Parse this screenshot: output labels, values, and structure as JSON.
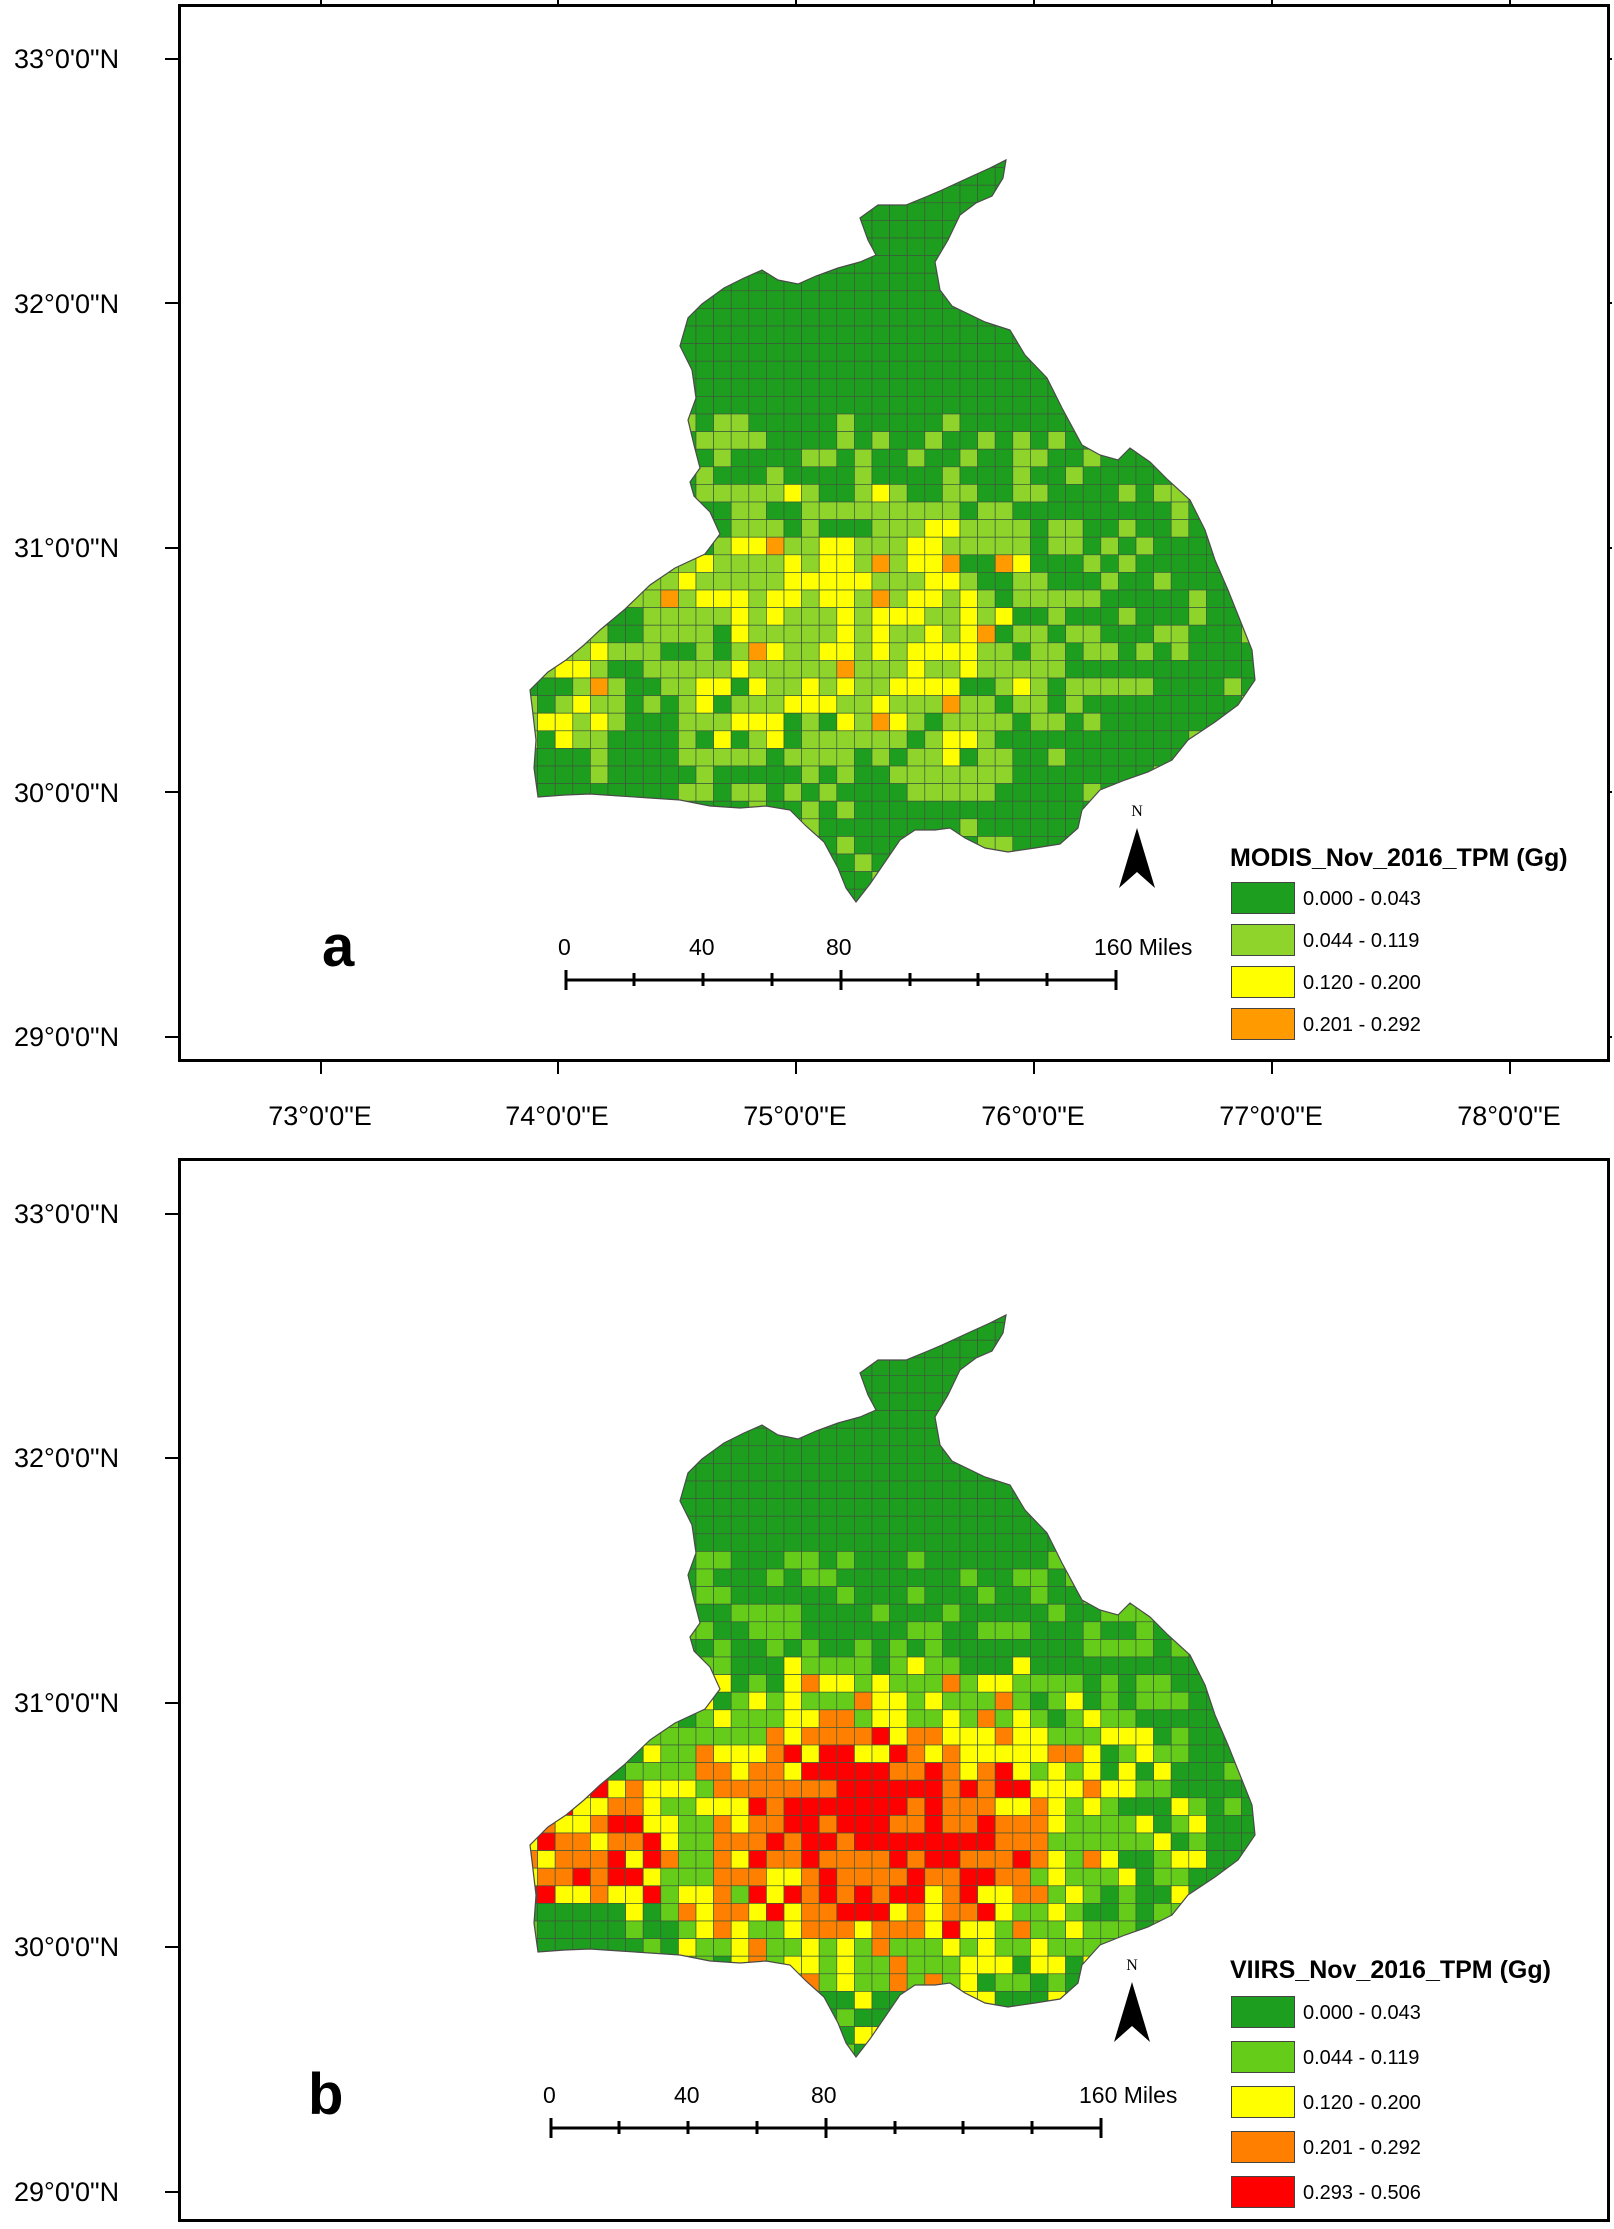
{
  "maps": [
    {
      "id": "a",
      "panel_letter": "a",
      "legend_title": "MODIS_Nov_2016_TPM (Gg)",
      "legend": [
        {
          "label": "0.000 - 0.043",
          "color": "#1e9e1e"
        },
        {
          "label": "0.044 - 0.119",
          "color": "#8fd42a"
        },
        {
          "label": "0.120 - 0.200",
          "color": "#ffff00"
        },
        {
          "label": "0.201 - 0.292",
          "color": "#ff9a00"
        }
      ],
      "scale_labels": [
        "0",
        "40",
        "80",
        "160 Miles"
      ],
      "north_label": "N",
      "lat_labels": [
        "33°0'0\"N",
        "32°0'0\"N",
        "31°0'0\"N",
        "30°0'0\"N",
        "29°0'0\"N"
      ]
    },
    {
      "id": "b",
      "panel_letter": "b",
      "legend_title": "VIIRS_Nov_2016_TPM (Gg)",
      "legend": [
        {
          "label": "0.000 - 0.043",
          "color": "#1e9e1e"
        },
        {
          "label": "0.044 - 0.119",
          "color": "#66cc1a"
        },
        {
          "label": "0.120 - 0.200",
          "color": "#ffff00"
        },
        {
          "label": "0.201 - 0.292",
          "color": "#ff8000"
        },
        {
          "label": "0.293 - 0.506",
          "color": "#ff0000"
        }
      ],
      "scale_labels": [
        "0",
        "40",
        "80",
        "160 Miles"
      ],
      "north_label": "N",
      "lat_labels": [
        "33°0'0\"N",
        "32°0'0\"N",
        "31°0'0\"N",
        "30°0'0\"N",
        "29°0'0\"N"
      ]
    }
  ],
  "lon_labels": [
    "73°0'0\"E",
    "74°0'0\"E",
    "75°0'0\"E",
    "76°0'0\"E",
    "77°0'0\"E",
    "78°0'0\"E"
  ]
}
